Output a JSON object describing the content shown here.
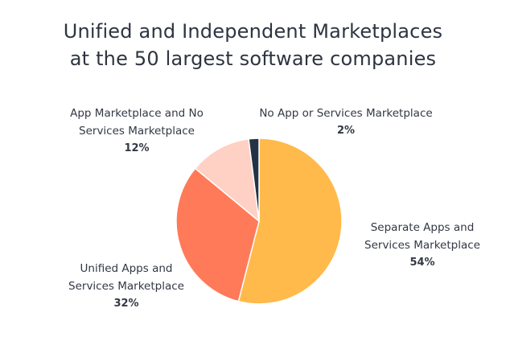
{
  "chart_data": {
    "type": "pie",
    "title_lines": [
      "Unified and Independent Marketplaces",
      "at the 50 largest software companies"
    ],
    "slices": [
      {
        "name_lines": [
          "Separate Apps and",
          "Services Marketplace"
        ],
        "value": 54,
        "pct_label": "54%",
        "color": "#ffba4b"
      },
      {
        "name_lines": [
          "Unified Apps and",
          "Services Marketplace"
        ],
        "value": 32,
        "pct_label": "32%",
        "color": "#ff7a59"
      },
      {
        "name_lines": [
          "App Marketplace and No",
          "Services Marketplace"
        ],
        "value": 12,
        "pct_label": "12%",
        "color": "#ffd0c4"
      },
      {
        "name_lines": [
          "No App or Services Marketplace"
        ],
        "value": 2,
        "pct_label": "2%",
        "color": "#243245"
      }
    ]
  }
}
